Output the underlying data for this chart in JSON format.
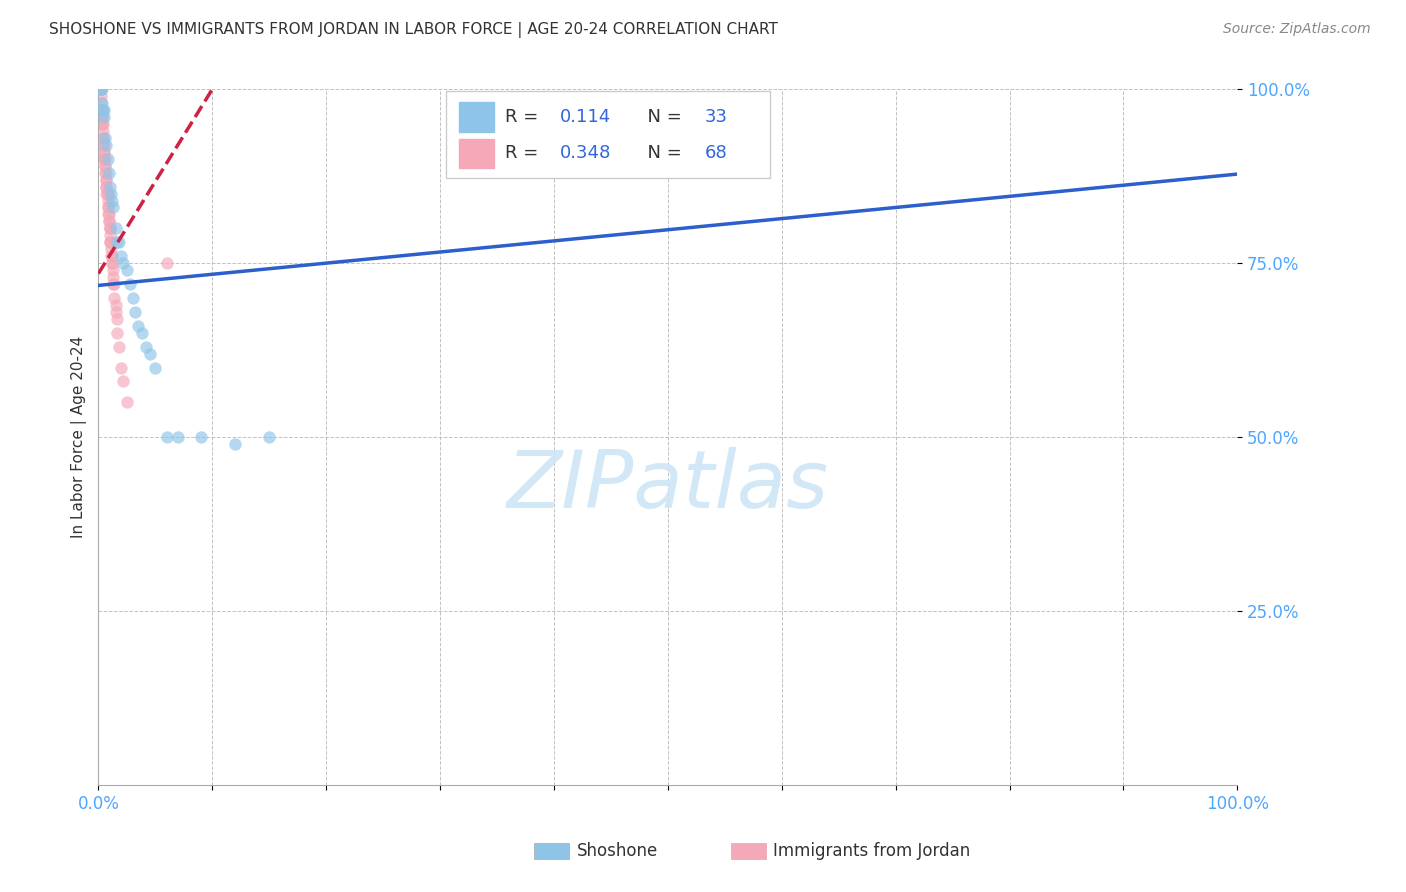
{
  "title": "SHOSHONE VS IMMIGRANTS FROM JORDAN IN LABOR FORCE | AGE 20-24 CORRELATION CHART",
  "source": "Source: ZipAtlas.com",
  "ylabel": "In Labor Force | Age 20-24",
  "blue_R": 0.114,
  "blue_N": 33,
  "pink_R": 0.348,
  "pink_N": 68,
  "blue_color": "#8ec4e8",
  "pink_color": "#f4a8b8",
  "trend_blue": "#2b5fcc",
  "trend_pink": "#cc2244",
  "background": "#ffffff",
  "grid_color": "#bbbbbb",
  "axis_label_color": "#333333",
  "tick_color": "#4da6ff",
  "blue_scatter_x": [
    0.002,
    0.003,
    0.003,
    0.004,
    0.005,
    0.005,
    0.006,
    0.007,
    0.008,
    0.009,
    0.01,
    0.011,
    0.012,
    0.013,
    0.015,
    0.016,
    0.018,
    0.02,
    0.022,
    0.025,
    0.028,
    0.03,
    0.032,
    0.035,
    0.038,
    0.042,
    0.045,
    0.05,
    0.06,
    0.07,
    0.09,
    0.12,
    0.15
  ],
  "blue_scatter_y": [
    1.0,
    1.0,
    0.98,
    0.97,
    0.97,
    0.96,
    0.93,
    0.92,
    0.9,
    0.88,
    0.86,
    0.85,
    0.84,
    0.83,
    0.8,
    0.78,
    0.78,
    0.76,
    0.75,
    0.74,
    0.72,
    0.7,
    0.68,
    0.66,
    0.65,
    0.63,
    0.62,
    0.6,
    0.5,
    0.5,
    0.5,
    0.49,
    0.5
  ],
  "pink_scatter_x": [
    0.001,
    0.001,
    0.001,
    0.002,
    0.002,
    0.002,
    0.002,
    0.002,
    0.003,
    0.003,
    0.003,
    0.003,
    0.003,
    0.004,
    0.004,
    0.004,
    0.004,
    0.004,
    0.005,
    0.005,
    0.005,
    0.005,
    0.005,
    0.006,
    0.006,
    0.006,
    0.006,
    0.007,
    0.007,
    0.007,
    0.007,
    0.007,
    0.007,
    0.008,
    0.008,
    0.008,
    0.008,
    0.008,
    0.008,
    0.009,
    0.009,
    0.009,
    0.01,
    0.01,
    0.01,
    0.01,
    0.01,
    0.01,
    0.011,
    0.011,
    0.011,
    0.012,
    0.012,
    0.012,
    0.013,
    0.013,
    0.013,
    0.014,
    0.014,
    0.015,
    0.015,
    0.016,
    0.016,
    0.018,
    0.02,
    0.022,
    0.025,
    0.06
  ],
  "pink_scatter_y": [
    1.0,
    1.0,
    1.0,
    1.0,
    1.0,
    0.99,
    0.98,
    0.97,
    0.97,
    0.96,
    0.96,
    0.95,
    0.95,
    0.95,
    0.94,
    0.93,
    0.93,
    0.92,
    0.92,
    0.91,
    0.91,
    0.9,
    0.9,
    0.9,
    0.89,
    0.89,
    0.88,
    0.88,
    0.87,
    0.87,
    0.86,
    0.86,
    0.85,
    0.85,
    0.85,
    0.84,
    0.83,
    0.83,
    0.82,
    0.82,
    0.81,
    0.81,
    0.8,
    0.8,
    0.8,
    0.79,
    0.78,
    0.78,
    0.78,
    0.77,
    0.76,
    0.76,
    0.75,
    0.75,
    0.74,
    0.73,
    0.72,
    0.72,
    0.7,
    0.69,
    0.68,
    0.67,
    0.65,
    0.63,
    0.6,
    0.58,
    0.55,
    0.75
  ],
  "xlim": [
    0,
    1.0
  ],
  "ylim": [
    0,
    1.0
  ],
  "xticks": [
    0.0,
    0.1,
    0.2,
    0.3,
    0.4,
    0.5,
    0.6,
    0.7,
    0.8,
    0.9,
    1.0
  ],
  "yticks": [
    0.25,
    0.5,
    0.75,
    1.0
  ],
  "xticklabels_show": [
    "0.0%",
    "100.0%"
  ],
  "yticklabels": [
    "25.0%",
    "50.0%",
    "75.0%",
    "100.0%"
  ],
  "blue_trend_x": [
    0.0,
    1.0
  ],
  "blue_trend_y": [
    0.718,
    0.878
  ],
  "pink_trend_x": [
    0.0,
    0.1
  ],
  "pink_trend_y": [
    0.735,
    1.0
  ],
  "marker_size": 80,
  "marker_alpha": 0.65,
  "figsize": [
    14.06,
    8.92
  ],
  "dpi": 100,
  "legend_label_color": "#333333",
  "legend_value_color": "#3366dd",
  "watermark_color": "#cce4f5",
  "bottom_legend_label1": "Shoshone",
  "bottom_legend_label2": "Immigrants from Jordan"
}
